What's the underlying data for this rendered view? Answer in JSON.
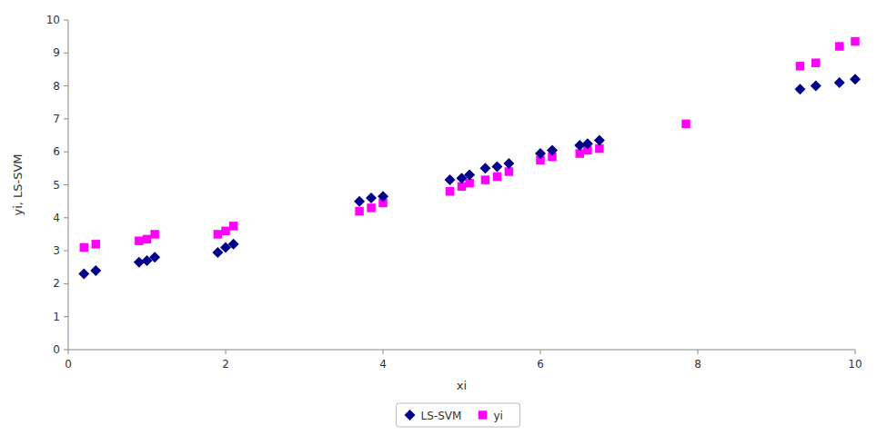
{
  "chart_data": {
    "type": "scatter",
    "xlabel": "xi",
    "ylabel": "yi, LS-SVM",
    "series": [
      {
        "name": "LS-SVM",
        "color": "#00008B",
        "marker": "diamond",
        "x": [
          0.2,
          0.35,
          0.9,
          1.0,
          1.1,
          1.9,
          2.0,
          2.1,
          3.7,
          3.85,
          4.0,
          4.85,
          5.0,
          5.1,
          5.3,
          5.45,
          5.6,
          6.0,
          6.15,
          6.5,
          6.6,
          6.75,
          9.3,
          9.5,
          9.8,
          10.0
        ],
        "values": [
          2.3,
          2.4,
          2.65,
          2.7,
          2.8,
          2.95,
          3.1,
          3.2,
          4.5,
          4.6,
          4.65,
          5.15,
          5.2,
          5.3,
          5.5,
          5.55,
          5.65,
          5.95,
          6.05,
          6.2,
          6.25,
          6.35,
          7.9,
          8.0,
          8.1,
          8.2
        ]
      },
      {
        "name": "yi",
        "color": "#FF00FF",
        "marker": "square",
        "x": [
          0.2,
          0.35,
          0.9,
          1.0,
          1.1,
          1.9,
          2.0,
          2.1,
          3.7,
          3.85,
          4.0,
          4.85,
          5.0,
          5.1,
          5.3,
          5.45,
          5.6,
          6.0,
          6.15,
          6.5,
          6.6,
          6.75,
          7.85,
          9.3,
          9.5,
          9.8,
          10.0
        ],
        "values": [
          3.1,
          3.2,
          3.3,
          3.35,
          3.5,
          3.5,
          3.6,
          3.75,
          4.2,
          4.3,
          4.45,
          4.8,
          4.95,
          5.05,
          5.15,
          5.25,
          5.4,
          5.75,
          5.85,
          5.95,
          6.05,
          6.1,
          6.85,
          8.6,
          8.7,
          9.2,
          9.35
        ]
      }
    ],
    "xlim": [
      0,
      10
    ],
    "ylim": [
      0,
      10
    ],
    "xticks": [
      0,
      2,
      4,
      6,
      8,
      10
    ],
    "yticks": [
      0,
      1,
      2,
      3,
      4,
      5,
      6,
      7,
      8,
      9,
      10
    ],
    "grid": false,
    "legend": "bottom"
  }
}
